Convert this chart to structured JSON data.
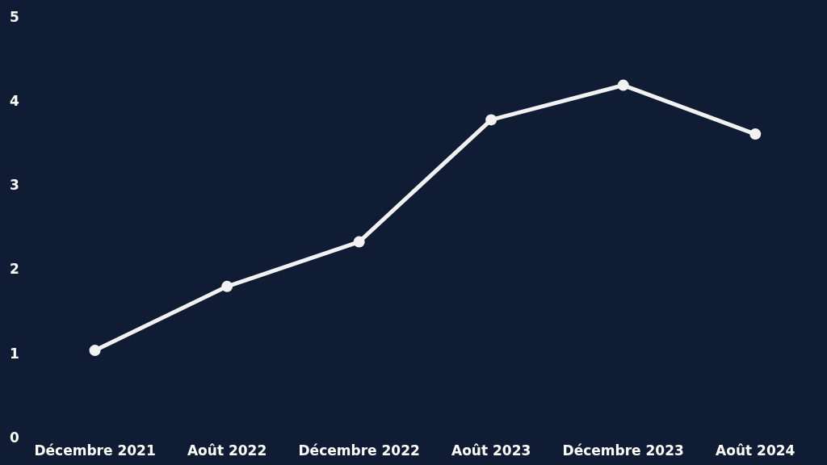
{
  "chart_data": {
    "type": "line",
    "categories": [
      "Décembre 2021",
      "Août 2022",
      "Décembre 2022",
      "Août 2023",
      "Décembre 2023",
      "Août 2024"
    ],
    "series": [
      {
        "color": "#f2f2f2",
        "values": [
          1.05,
          1.81,
          2.34,
          3.79,
          4.2,
          3.62
        ]
      }
    ],
    "ylim": [
      0,
      5
    ],
    "yticks": [
      0,
      1,
      2,
      3,
      4,
      5
    ],
    "grid": false,
    "legend": false,
    "marker": "circle",
    "line_style": "solid"
  }
}
